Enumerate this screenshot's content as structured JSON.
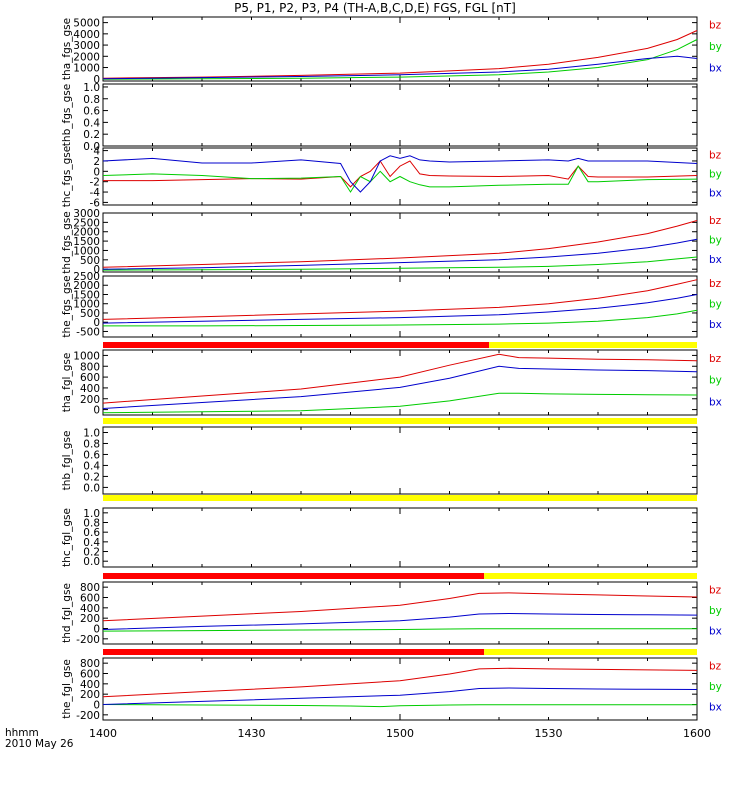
{
  "title": "P5, P1, P2, P3, P4 (TH-A,B,C,D,E) FGS, FGL [nT]",
  "footer": {
    "line1": "hhmm",
    "line2": "2010 May 26"
  },
  "x_ticks": [
    "1400",
    "1430",
    "1500",
    "1530",
    "1600"
  ],
  "colors": {
    "bx": "#0000cc",
    "by": "#00cc00",
    "bz": "#dd0000",
    "mode_fast": "#ff0000",
    "mode_slow": "#ffff00"
  },
  "chart_data": [
    {
      "type": "line",
      "ylabel": "tha_fgs_gse",
      "ylim": [
        -200,
        5500
      ],
      "yticks": [
        "5000",
        "4000",
        "3000",
        "2000",
        "1000",
        "0"
      ],
      "series": [
        {
          "name": "bz",
          "color": "bz",
          "x": [
            0,
            10,
            20,
            30,
            40,
            45,
            50,
            55,
            58,
            60
          ],
          "values": [
            50,
            150,
            300,
            500,
            900,
            1300,
            1900,
            2700,
            3500,
            4300
          ]
        },
        {
          "name": "by",
          "color": "by",
          "x": [
            0,
            10,
            20,
            30,
            40,
            45,
            50,
            55,
            58,
            60
          ],
          "values": [
            -50,
            0,
            50,
            150,
            350,
            600,
            1000,
            1700,
            2600,
            3500
          ]
        },
        {
          "name": "bx",
          "color": "bx",
          "x": [
            0,
            10,
            20,
            30,
            40,
            45,
            50,
            55,
            58,
            60
          ],
          "values": [
            0,
            100,
            200,
            350,
            600,
            850,
            1300,
            1800,
            2000,
            1800
          ]
        }
      ]
    },
    {
      "type": "line",
      "ylabel": "thb_fgs_gse",
      "ylim": [
        0,
        1.05
      ],
      "yticks": [
        "1.0",
        "0.8",
        "0.6",
        "0.4",
        "0.2",
        "0.0"
      ],
      "series": []
    },
    {
      "type": "line",
      "ylabel": "thc_fgs_gse",
      "ylim": [
        -6.5,
        4.5
      ],
      "yticks": [
        "4",
        "2",
        "0",
        "-2",
        "-4",
        "-6"
      ],
      "series": [
        {
          "name": "bz",
          "color": "bz",
          "x": [
            0,
            5,
            10,
            15,
            20,
            24,
            25,
            26,
            27,
            28,
            29,
            30,
            31,
            32,
            33,
            35,
            40,
            45,
            47,
            48,
            49,
            50,
            55,
            60
          ],
          "values": [
            -1.8,
            -1.8,
            -1.6,
            -1.4,
            -1.5,
            -1,
            -3,
            -1,
            0,
            2,
            -1,
            1,
            2,
            -0.5,
            -0.8,
            -0.9,
            -1,
            -0.8,
            -1.5,
            1,
            -1,
            -1.1,
            -1.1,
            -0.8
          ]
        },
        {
          "name": "by",
          "color": "by",
          "x": [
            0,
            5,
            10,
            15,
            20,
            24,
            25,
            26,
            27,
            28,
            29,
            30,
            31,
            32,
            33,
            35,
            40,
            45,
            47,
            48,
            49,
            50,
            55,
            60
          ],
          "values": [
            -0.8,
            -0.5,
            -0.8,
            -1.4,
            -1.3,
            -1,
            -4,
            -1,
            -2,
            0,
            -2,
            -1,
            -2,
            -2.6,
            -3,
            -3,
            -2.7,
            -2.5,
            -2.5,
            1,
            -2,
            -2,
            -1.6,
            -1.5
          ]
        },
        {
          "name": "bx",
          "color": "bx",
          "x": [
            0,
            5,
            10,
            15,
            20,
            24,
            25,
            26,
            27,
            28,
            29,
            30,
            31,
            32,
            33,
            35,
            40,
            45,
            47,
            48,
            49,
            50,
            55,
            60
          ],
          "values": [
            2,
            2.5,
            1.6,
            1.6,
            2.2,
            1.5,
            -2,
            -4,
            -2,
            2,
            3,
            2.5,
            3,
            2.2,
            2,
            1.8,
            2,
            2.2,
            2,
            2.5,
            2,
            2,
            2,
            1.5
          ]
        }
      ]
    },
    {
      "type": "line",
      "ylabel": "thd_fgs_gse",
      "ylim": [
        -150,
        3000
      ],
      "yticks": [
        "3000",
        "2500",
        "2000",
        "1500",
        "1000",
        "500",
        "0"
      ],
      "series": [
        {
          "name": "bz",
          "color": "bz",
          "x": [
            0,
            10,
            20,
            30,
            40,
            45,
            50,
            55,
            58,
            60
          ],
          "values": [
            100,
            250,
            400,
            600,
            850,
            1100,
            1450,
            1900,
            2300,
            2600
          ]
        },
        {
          "name": "by",
          "color": "by",
          "x": [
            0,
            10,
            20,
            30,
            40,
            45,
            50,
            55,
            58,
            60
          ],
          "values": [
            -50,
            -30,
            0,
            50,
            100,
            150,
            250,
            400,
            550,
            650
          ]
        },
        {
          "name": "bx",
          "color": "bx",
          "x": [
            0,
            10,
            20,
            30,
            40,
            45,
            50,
            55,
            58,
            60
          ],
          "values": [
            0,
            80,
            200,
            350,
            500,
            650,
            850,
            1150,
            1400,
            1600
          ]
        }
      ]
    },
    {
      "type": "line",
      "ylabel": "the_fgs_gse",
      "ylim": [
        -800,
        2500
      ],
      "yticks": [
        "2500",
        "2000",
        "1500",
        "1000",
        "500",
        "0",
        "-500"
      ],
      "series": [
        {
          "name": "bz",
          "color": "bz",
          "x": [
            0,
            10,
            20,
            30,
            40,
            45,
            50,
            55,
            58,
            60
          ],
          "values": [
            150,
            300,
            450,
            600,
            800,
            1000,
            1300,
            1700,
            2050,
            2300
          ]
        },
        {
          "name": "by",
          "color": "by",
          "x": [
            0,
            10,
            20,
            30,
            40,
            45,
            50,
            55,
            58,
            60
          ],
          "values": [
            -200,
            -200,
            -180,
            -150,
            -100,
            -50,
            50,
            250,
            450,
            650
          ]
        },
        {
          "name": "bx",
          "color": "bx",
          "x": [
            0,
            10,
            20,
            30,
            40,
            45,
            50,
            55,
            58,
            60
          ],
          "values": [
            -50,
            50,
            150,
            250,
            400,
            550,
            750,
            1050,
            1300,
            1500
          ]
        }
      ]
    },
    {
      "type": "line",
      "ylabel": "tha_fgl_gse",
      "ylim": [
        -100,
        1100
      ],
      "yticks": [
        "1000",
        "800",
        "600",
        "400",
        "200",
        "0"
      ],
      "series": [
        {
          "name": "bz",
          "color": "bz",
          "x": [
            0,
            10,
            20,
            30,
            35,
            40,
            42,
            45,
            50,
            55,
            60
          ],
          "values": [
            120,
            250,
            380,
            600,
            820,
            1020,
            960,
            950,
            930,
            920,
            900
          ]
        },
        {
          "name": "by",
          "color": "by",
          "x": [
            0,
            10,
            20,
            30,
            35,
            40,
            42,
            45,
            50,
            55,
            60
          ],
          "values": [
            -60,
            -40,
            -20,
            60,
            160,
            300,
            300,
            290,
            280,
            275,
            270
          ]
        },
        {
          "name": "bx",
          "color": "bx",
          "x": [
            0,
            10,
            20,
            30,
            35,
            40,
            42,
            45,
            50,
            55,
            60
          ],
          "values": [
            20,
            130,
            240,
            410,
            580,
            800,
            760,
            750,
            730,
            720,
            700
          ]
        }
      ]
    },
    {
      "type": "line",
      "ylabel": "thb_fgl_gse",
      "ylim": [
        -0.12,
        1.1
      ],
      "yticks": [
        "1.0",
        "0.8",
        "0.6",
        "0.4",
        "0.2",
        "0.0"
      ],
      "series": []
    },
    {
      "type": "line",
      "ylabel": "thc_fgl_gse",
      "ylim": [
        -0.12,
        1.1
      ],
      "yticks": [
        "1.0",
        "0.8",
        "0.6",
        "0.4",
        "0.2",
        "0.0"
      ],
      "series": []
    },
    {
      "type": "line",
      "ylabel": "thd_fgl_gse",
      "ylim": [
        -300,
        900
      ],
      "yticks": [
        "800",
        "600",
        "400",
        "200",
        "0",
        "-200"
      ],
      "series": [
        {
          "name": "bz",
          "color": "bz",
          "x": [
            0,
            10,
            20,
            30,
            35,
            38,
            41,
            45,
            50,
            55,
            60
          ],
          "values": [
            150,
            240,
            330,
            450,
            580,
            680,
            690,
            670,
            650,
            630,
            610
          ]
        },
        {
          "name": "by",
          "color": "by",
          "x": [
            0,
            10,
            20,
            30,
            35,
            38,
            41,
            45,
            50,
            55,
            60
          ],
          "values": [
            -50,
            -40,
            -30,
            -20,
            -10,
            -5,
            -5,
            -5,
            -5,
            -5,
            -5
          ]
        },
        {
          "name": "bx",
          "color": "bx",
          "x": [
            0,
            10,
            20,
            30,
            35,
            38,
            41,
            45,
            50,
            55,
            60
          ],
          "values": [
            -20,
            40,
            90,
            150,
            220,
            280,
            290,
            280,
            270,
            265,
            260
          ]
        }
      ]
    },
    {
      "type": "line",
      "ylabel": "the_fgl_gse",
      "ylim": [
        -300,
        900
      ],
      "yticks": [
        "800",
        "600",
        "400",
        "200",
        "0",
        "-200"
      ],
      "series": [
        {
          "name": "bz",
          "color": "bz",
          "x": [
            0,
            10,
            20,
            30,
            35,
            38,
            41,
            45,
            50,
            55,
            60
          ],
          "values": [
            150,
            250,
            340,
            460,
            590,
            690,
            700,
            690,
            680,
            670,
            660
          ]
        },
        {
          "name": "by",
          "color": "by",
          "x": [
            0,
            10,
            20,
            25,
            28,
            30,
            35,
            38,
            41,
            45,
            50,
            55,
            60
          ],
          "values": [
            0,
            -10,
            -20,
            -30,
            -40,
            -25,
            -10,
            -5,
            -5,
            -5,
            -5,
            -5,
            -5
          ]
        },
        {
          "name": "bx",
          "color": "bx",
          "x": [
            0,
            10,
            20,
            30,
            35,
            38,
            41,
            45,
            50,
            55,
            60
          ],
          "values": [
            0,
            60,
            120,
            180,
            250,
            310,
            320,
            310,
            300,
            295,
            290
          ]
        }
      ]
    }
  ],
  "mode_bars": [
    {
      "segments": [
        {
          "from": 0,
          "to": 39,
          "color": "mode_fast"
        },
        {
          "from": 39,
          "to": 60,
          "color": "mode_slow"
        }
      ]
    },
    {
      "segments": [
        {
          "from": 0,
          "to": 60,
          "color": "mode_slow"
        }
      ]
    },
    {
      "segments": [
        {
          "from": 0,
          "to": 60,
          "color": "mode_slow"
        }
      ]
    },
    {
      "segments": [
        {
          "from": 0,
          "to": 38.5,
          "color": "mode_fast"
        },
        {
          "from": 38.5,
          "to": 60,
          "color": "mode_slow"
        }
      ]
    },
    {
      "segments": [
        {
          "from": 0,
          "to": 38.5,
          "color": "mode_fast"
        },
        {
          "from": 38.5,
          "to": 60,
          "color": "mode_slow"
        }
      ]
    }
  ]
}
